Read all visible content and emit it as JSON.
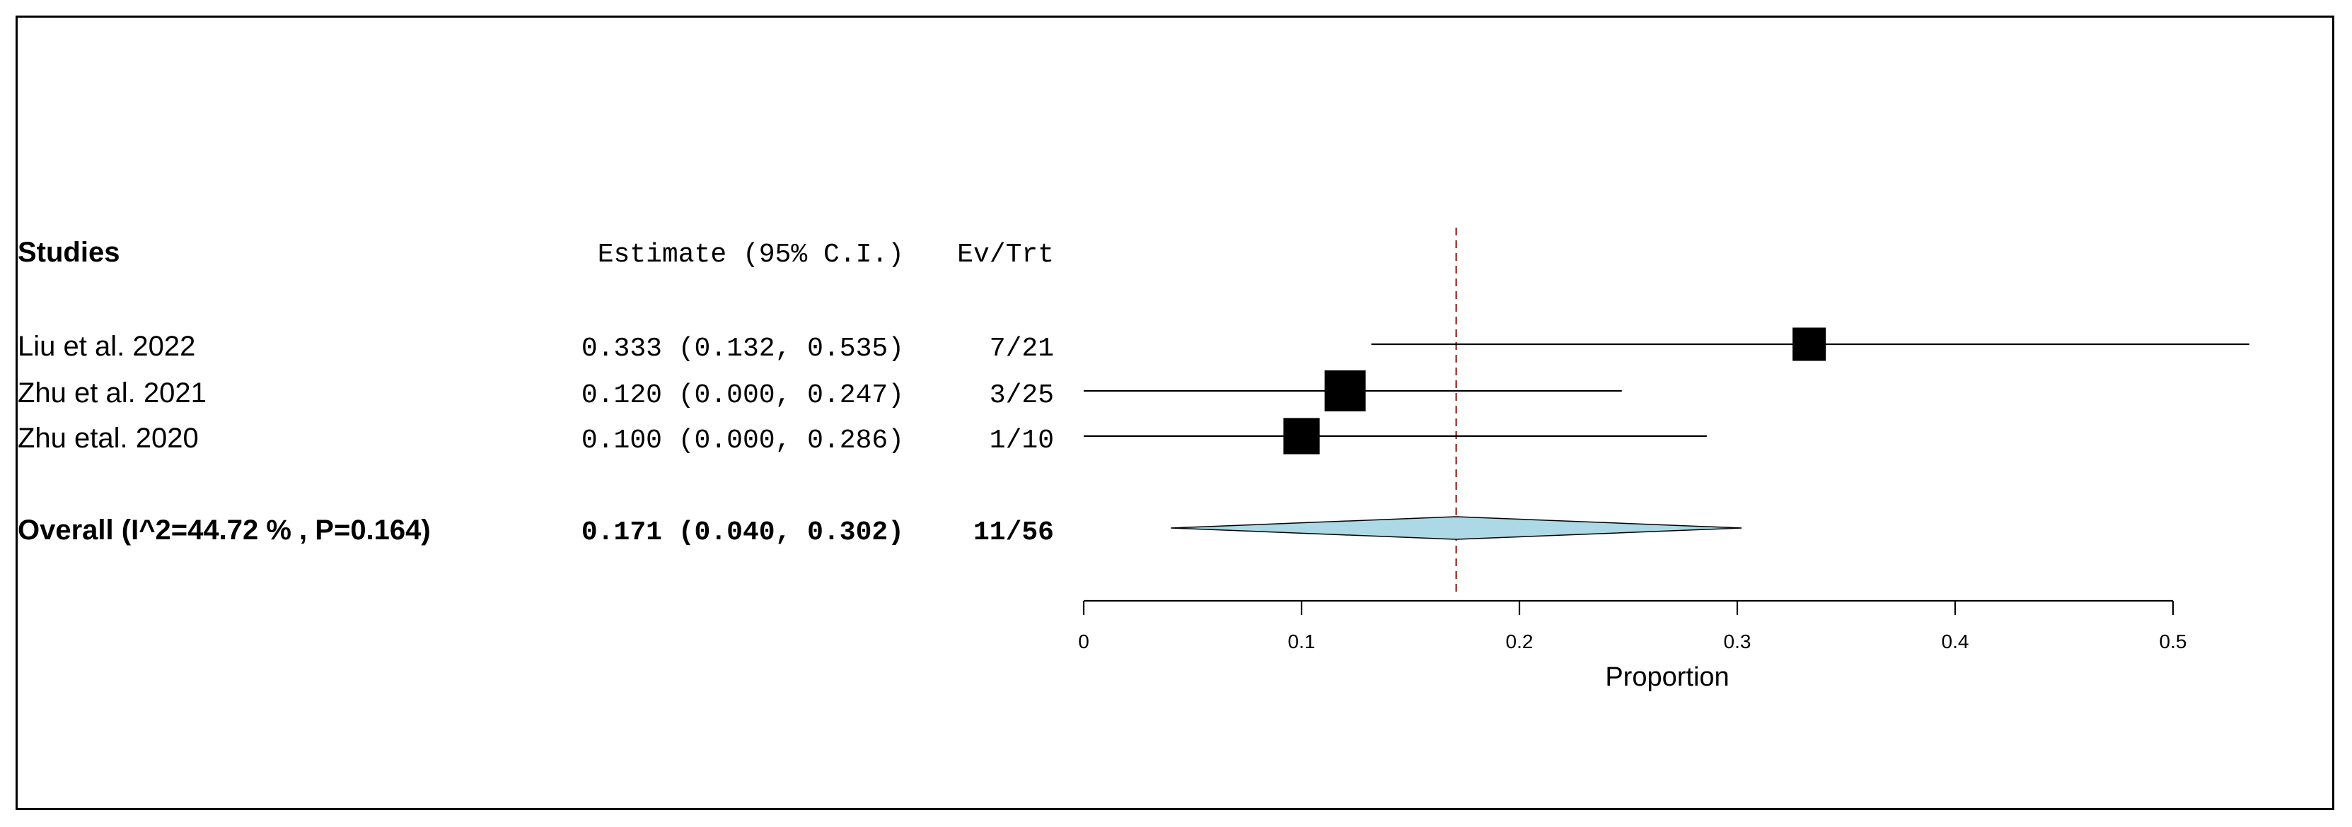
{
  "chart_data": {
    "type": "forest",
    "header": {
      "studies": "Studies",
      "estimate": "Estimate (95% C.I.)",
      "events": "Ev/Trt"
    },
    "studies": [
      {
        "name": "Liu et al. 2022",
        "estimate": 0.333,
        "lower": 0.132,
        "upper": 0.535,
        "estimate_text": "0.333 (0.132, 0.535)",
        "events_text": "7/21",
        "weight": 0.27
      },
      {
        "name": "Zhu et al. 2021",
        "estimate": 0.12,
        "lower": 0.0,
        "upper": 0.247,
        "estimate_text": "0.120 (0.000, 0.247)",
        "events_text": "3/25",
        "weight": 0.41
      },
      {
        "name": "Zhu etal. 2020",
        "estimate": 0.1,
        "lower": 0.0,
        "upper": 0.286,
        "estimate_text": "0.100 (0.000, 0.286)",
        "events_text": "1/10",
        "weight": 0.32
      }
    ],
    "overall": {
      "name": "Overall (I^2=44.72 % , P=0.164)",
      "estimate": 0.171,
      "lower": 0.04,
      "upper": 0.302,
      "estimate_text": "0.171 (0.040, 0.302)",
      "events_text": "11/56"
    },
    "xlabel": "Proportion",
    "xlim": [
      0,
      0.5
    ],
    "xticks": [
      0,
      0.1,
      0.2,
      0.3,
      0.4,
      0.5
    ],
    "xtick_labels": [
      "0",
      "0.1",
      "0.2",
      "0.3",
      "0.4",
      "0.5"
    ],
    "reference_line": 0.171
  },
  "colors": {
    "diamond_fill": "#add8e6",
    "reference_line": "#a0403a",
    "marker": "#000000"
  }
}
